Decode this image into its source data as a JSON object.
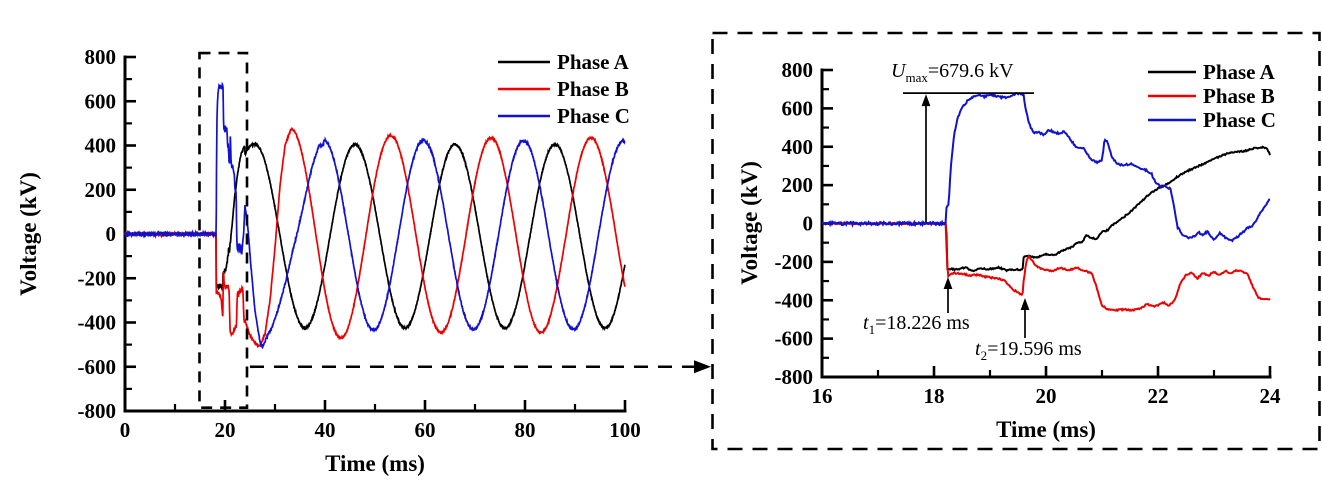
{
  "figure": {
    "background": "#ffffff"
  },
  "colors": {
    "phase_a": "#000000",
    "phase_b": "#ee0000",
    "phase_c": "#1111d0",
    "axis": "#000000"
  },
  "chart_data": [
    {
      "id": "overview",
      "type": "line",
      "title": "",
      "xlabel": "Time (ms)",
      "ylabel": "Voltage (kV)",
      "xlim": [
        0,
        100
      ],
      "ylim": [
        -800,
        800
      ],
      "xticks": [
        0,
        20,
        40,
        60,
        80,
        100
      ],
      "xtick_labels": [
        "0",
        "20",
        "40",
        "60",
        "80",
        "100"
      ],
      "xminor": [
        10,
        30,
        50,
        70,
        90
      ],
      "yticks": [
        800,
        600,
        400,
        200,
        0,
        -200,
        -400,
        -600,
        -800
      ],
      "ytick_labels": [
        "800",
        "600",
        "400",
        "200",
        "0",
        "-200",
        "-400",
        "-600",
        "-800"
      ],
      "yminor": [
        700,
        500,
        300,
        100,
        -100,
        -300,
        -500,
        -700
      ],
      "grid": false,
      "legend": {
        "position": "top-right",
        "entries": [
          {
            "label": "Phase A",
            "color": "#000000"
          },
          {
            "label": "Phase B",
            "color": "#ee0000"
          },
          {
            "label": "Phase C",
            "color": "#1111d0"
          }
        ]
      },
      "fault_t_ms": 18.226,
      "series": [
        {
          "name": "Phase A",
          "color": "#000000",
          "noise_pre_kv": 3,
          "noise_post_kv": 4,
          "transient_from_zoom": 0,
          "bridge": [
            [
              24,
              355
            ],
            [
              24.5,
              385
            ],
            [
              25.2,
              402
            ],
            [
              26,
              405
            ]
          ],
          "steady": {
            "takeover_t": 26.0,
            "peak_t": 26.0,
            "period_ms": 20,
            "amp_start": 415,
            "amp_end": 415,
            "amp_end_t": 100,
            "dc": -10
          }
        },
        {
          "name": "Phase B",
          "color": "#ee0000",
          "noise_pre_kv": 3,
          "noise_post_kv": 4,
          "transient_from_zoom": 1,
          "bridge": [
            [
              24,
              -392
            ],
            [
              24.8,
              -450
            ],
            [
              26,
              -495
            ],
            [
              27,
              -505
            ],
            [
              28,
              -450
            ],
            [
              29,
              -300
            ],
            [
              30,
              -60
            ],
            [
              31,
              220
            ],
            [
              32,
              400
            ],
            [
              33.2,
              475
            ]
          ],
          "steady": {
            "takeover_t": 33.2,
            "peak_t": 33.2,
            "period_ms": 20,
            "amp_start": 480,
            "amp_end": 440,
            "amp_end_t": 60,
            "dc": -5
          }
        },
        {
          "name": "Phase C",
          "color": "#1111d0",
          "noise_pre_kv": 8,
          "noise_post_kv": 5,
          "transient_from_zoom": 2,
          "bridge": [
            [
              24,
              128
            ],
            [
              24.6,
              20
            ],
            [
              25.2,
              -150
            ],
            [
              26,
              -350
            ],
            [
              27,
              -490
            ],
            [
              27.5,
              -510
            ],
            [
              28.5,
              -460
            ],
            [
              29.5,
              -415
            ],
            [
              30.5,
              -350
            ],
            [
              31.5,
              -270
            ],
            [
              32.5,
              -180
            ],
            [
              33.5,
              -80
            ],
            [
              34.5,
              10
            ],
            [
              35.5,
              110
            ],
            [
              36.5,
              215
            ],
            [
              37.5,
              310
            ],
            [
              38.8,
              400
            ]
          ],
          "steady": {
            "takeover_t": 39.7,
            "peak_t": 39.7,
            "period_ms": 20,
            "amp_start": 430,
            "amp_end": 425,
            "amp_end_t": 100,
            "dc": -5
          }
        }
      ],
      "annotations": {
        "zoom_box": {
          "t_range": [
            14.9,
            24.4
          ],
          "v_range": [
            -785,
            818
          ]
        },
        "connector": {
          "v_kv": -600
        }
      }
    },
    {
      "id": "zoom",
      "type": "line",
      "title": "",
      "xlabel": "Time (ms)",
      "ylabel": "Voltage (kV)",
      "xlim": [
        16,
        24
      ],
      "ylim": [
        -800,
        800
      ],
      "xticks": [
        16,
        18,
        20,
        22,
        24
      ],
      "xtick_labels": [
        "16",
        "18",
        "20",
        "22",
        "24"
      ],
      "xminor": [
        17,
        19,
        21,
        23
      ],
      "yticks": [
        800,
        600,
        400,
        200,
        0,
        -200,
        -400,
        -600,
        -800
      ],
      "ytick_labels": [
        "800",
        "600",
        "400",
        "200",
        "0",
        "-200",
        "-400",
        "-600",
        "-800"
      ],
      "yminor": [
        700,
        500,
        300,
        100,
        -100,
        -300,
        -500,
        -700
      ],
      "grid": false,
      "legend": {
        "position": "top-right",
        "entries": [
          {
            "label": "Phase A",
            "color": "#000000"
          },
          {
            "label": "Phase B",
            "color": "#ee0000"
          },
          {
            "label": "Phase C",
            "color": "#1111d0"
          }
        ]
      },
      "series": [
        {
          "name": "Phase A",
          "color": "#000000",
          "noise_pre_kv": 3,
          "noise_post_kv": 4,
          "points": [
            [
              16,
              0
            ],
            [
              18.21,
              0
            ],
            [
              18.226,
              -60
            ],
            [
              18.24,
              -235
            ],
            [
              18.4,
              -240
            ],
            [
              18.55,
              -230
            ],
            [
              18.7,
              -245
            ],
            [
              18.85,
              -235
            ],
            [
              19.0,
              -238
            ],
            [
              19.15,
              -228
            ],
            [
              19.3,
              -245
            ],
            [
              19.45,
              -238
            ],
            [
              19.58,
              -242
            ],
            [
              19.6,
              -175
            ],
            [
              19.7,
              -168
            ],
            [
              19.8,
              -178
            ],
            [
              19.9,
              -170
            ],
            [
              20.0,
              -160
            ],
            [
              20.15,
              -165
            ],
            [
              20.3,
              -140
            ],
            [
              20.45,
              -125
            ],
            [
              20.55,
              -100
            ],
            [
              20.65,
              -95
            ],
            [
              20.72,
              -60
            ],
            [
              20.8,
              -75
            ],
            [
              20.9,
              -80
            ],
            [
              21.0,
              -45
            ],
            [
              21.1,
              -35
            ],
            [
              21.2,
              -5
            ],
            [
              21.35,
              25
            ],
            [
              21.5,
              60
            ],
            [
              21.65,
              100
            ],
            [
              21.8,
              140
            ],
            [
              21.95,
              175
            ],
            [
              22.05,
              190
            ],
            [
              22.2,
              210
            ],
            [
              22.35,
              245
            ],
            [
              22.5,
              270
            ],
            [
              22.65,
              290
            ],
            [
              22.8,
              310
            ],
            [
              22.95,
              330
            ],
            [
              23.1,
              350
            ],
            [
              23.25,
              365
            ],
            [
              23.4,
              372
            ],
            [
              23.55,
              378
            ],
            [
              23.7,
              392
            ],
            [
              23.85,
              398
            ],
            [
              23.95,
              390
            ],
            [
              24,
              358
            ]
          ]
        },
        {
          "name": "Phase B",
          "color": "#ee0000",
          "noise_pre_kv": 3,
          "noise_post_kv": 4,
          "points": [
            [
              16,
              0
            ],
            [
              18.21,
              0
            ],
            [
              18.226,
              -140
            ],
            [
              18.25,
              -272
            ],
            [
              18.35,
              -258
            ],
            [
              18.5,
              -262
            ],
            [
              18.65,
              -270
            ],
            [
              18.8,
              -268
            ],
            [
              18.95,
              -280
            ],
            [
              19.1,
              -285
            ],
            [
              19.25,
              -295
            ],
            [
              19.4,
              -340
            ],
            [
              19.5,
              -362
            ],
            [
              19.58,
              -372
            ],
            [
              19.6,
              -300
            ],
            [
              19.65,
              -195
            ],
            [
              19.7,
              -172
            ],
            [
              19.78,
              -205
            ],
            [
              19.85,
              -228
            ],
            [
              19.95,
              -238
            ],
            [
              20.1,
              -248
            ],
            [
              20.25,
              -232
            ],
            [
              20.4,
              -242
            ],
            [
              20.55,
              -232
            ],
            [
              20.7,
              -245
            ],
            [
              20.82,
              -262
            ],
            [
              20.9,
              -330
            ],
            [
              21.0,
              -428
            ],
            [
              21.1,
              -448
            ],
            [
              21.25,
              -452
            ],
            [
              21.4,
              -448
            ],
            [
              21.55,
              -452
            ],
            [
              21.7,
              -442
            ],
            [
              21.8,
              -420
            ],
            [
              21.9,
              -432
            ],
            [
              22.0,
              -428
            ],
            [
              22.1,
              -412
            ],
            [
              22.2,
              -428
            ],
            [
              22.3,
              -400
            ],
            [
              22.4,
              -310
            ],
            [
              22.5,
              -268
            ],
            [
              22.6,
              -255
            ],
            [
              22.7,
              -288
            ],
            [
              22.8,
              -258
            ],
            [
              22.9,
              -272
            ],
            [
              23.0,
              -252
            ],
            [
              23.1,
              -268
            ],
            [
              23.2,
              -248
            ],
            [
              23.3,
              -258
            ],
            [
              23.4,
              -242
            ],
            [
              23.5,
              -248
            ],
            [
              23.6,
              -265
            ],
            [
              23.7,
              -335
            ],
            [
              23.8,
              -388
            ],
            [
              23.9,
              -398
            ],
            [
              24,
              -392
            ]
          ]
        },
        {
          "name": "Phase C",
          "color": "#1111d0",
          "noise_pre_kv": 8,
          "noise_post_kv": 5,
          "points": [
            [
              16,
              0
            ],
            [
              18.21,
              0
            ],
            [
              18.226,
              85
            ],
            [
              18.26,
              95
            ],
            [
              18.3,
              290
            ],
            [
              18.36,
              470
            ],
            [
              18.42,
              545
            ],
            [
              18.5,
              602
            ],
            [
              18.6,
              640
            ],
            [
              18.7,
              658
            ],
            [
              18.8,
              672
            ],
            [
              18.9,
              660
            ],
            [
              19.0,
              674
            ],
            [
              19.1,
              665
            ],
            [
              19.2,
              658
            ],
            [
              19.3,
              655
            ],
            [
              19.4,
              670
            ],
            [
              19.48,
              679.6
            ],
            [
              19.55,
              673
            ],
            [
              19.6,
              668
            ],
            [
              19.63,
              610
            ],
            [
              19.67,
              552
            ],
            [
              19.72,
              505
            ],
            [
              19.78,
              468
            ],
            [
              19.85,
              478
            ],
            [
              19.95,
              462
            ],
            [
              20.05,
              488
            ],
            [
              20.15,
              476
            ],
            [
              20.25,
              468
            ],
            [
              20.32,
              484
            ],
            [
              20.4,
              455
            ],
            [
              20.47,
              425
            ],
            [
              20.55,
              392
            ],
            [
              20.65,
              398
            ],
            [
              20.72,
              372
            ],
            [
              20.8,
              335
            ],
            [
              20.9,
              318
            ],
            [
              21.0,
              332
            ],
            [
              21.05,
              442
            ],
            [
              21.1,
              425
            ],
            [
              21.18,
              345
            ],
            [
              21.28,
              312
            ],
            [
              21.38,
              302
            ],
            [
              21.5,
              312
            ],
            [
              21.62,
              296
            ],
            [
              21.75,
              282
            ],
            [
              21.88,
              262
            ],
            [
              21.95,
              218
            ],
            [
              22.05,
              195
            ],
            [
              22.15,
              192
            ],
            [
              22.22,
              182
            ],
            [
              22.28,
              95
            ],
            [
              22.35,
              -20
            ],
            [
              22.45,
              -62
            ],
            [
              22.55,
              -78
            ],
            [
              22.65,
              -68
            ],
            [
              22.72,
              -45
            ],
            [
              22.8,
              -58
            ],
            [
              22.88,
              -42
            ],
            [
              23.0,
              -85
            ],
            [
              23.1,
              -50
            ],
            [
              23.2,
              -72
            ],
            [
              23.32,
              -92
            ],
            [
              23.45,
              -62
            ],
            [
              23.58,
              -28
            ],
            [
              23.7,
              -8
            ],
            [
              23.8,
              42
            ],
            [
              23.9,
              88
            ],
            [
              24,
              128
            ]
          ]
        }
      ],
      "annotations": {
        "u_max": {
          "var": "U",
          "sub": "max",
          "rest": "=679.6 kV",
          "value_kv": 679.6
        },
        "t1": {
          "var": "t",
          "sub": "1",
          "rest": "=18.226 ms",
          "t_ms": 18.226
        },
        "t2": {
          "var": "t",
          "sub": "2",
          "rest": "=19.596 ms",
          "t_ms": 19.596
        }
      }
    }
  ]
}
